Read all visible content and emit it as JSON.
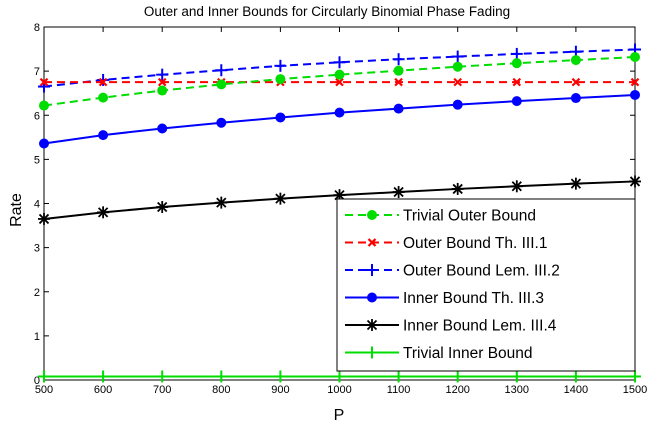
{
  "chart_data": {
    "type": "line",
    "title": "Outer and Inner Bounds for Circularly Binomial Phase Fading",
    "xlabel": "P",
    "ylabel": "Rate",
    "xlim": [
      500,
      1500
    ],
    "ylim": [
      0,
      8
    ],
    "x": [
      500,
      600,
      700,
      800,
      900,
      1000,
      1100,
      1200,
      1300,
      1400,
      1500
    ],
    "xticks": [
      "500",
      "600",
      "700",
      "800",
      "900",
      "1000",
      "1100",
      "1200",
      "1300",
      "1400",
      "1500"
    ],
    "yticks": [
      "0",
      "1",
      "2",
      "3",
      "4",
      "5",
      "6",
      "7",
      "8"
    ],
    "grid": false,
    "legend_position": "bottom-right",
    "series": [
      {
        "name": "Trivial Outer Bound",
        "color": "#00dd00",
        "dash": "dashed",
        "marker": "circle",
        "values": [
          6.22,
          6.4,
          6.56,
          6.7,
          6.82,
          6.92,
          7.01,
          7.1,
          7.18,
          7.25,
          7.32
        ]
      },
      {
        "name": "Outer Bound Th. III.1",
        "color": "#ff0000",
        "dash": "dashed",
        "marker": "x",
        "values": [
          6.75,
          6.75,
          6.75,
          6.75,
          6.75,
          6.75,
          6.75,
          6.75,
          6.75,
          6.75,
          6.75
        ]
      },
      {
        "name": "Outer Bound Lem. III.2",
        "color": "#0000ff",
        "dash": "dashed",
        "marker": "plus",
        "values": [
          6.65,
          6.8,
          6.92,
          7.02,
          7.12,
          7.2,
          7.27,
          7.33,
          7.39,
          7.44,
          7.49
        ]
      },
      {
        "name": "Inner Bound Th. III.3",
        "color": "#0000ff",
        "dash": "solid",
        "marker": "circle",
        "values": [
          5.36,
          5.55,
          5.7,
          5.83,
          5.95,
          6.06,
          6.15,
          6.24,
          6.32,
          6.39,
          6.46
        ]
      },
      {
        "name": "Inner Bound Lem. III.4",
        "color": "#000000",
        "dash": "solid",
        "marker": "star",
        "values": [
          3.65,
          3.8,
          3.92,
          4.02,
          4.11,
          4.19,
          4.26,
          4.33,
          4.39,
          4.45,
          4.5
        ]
      },
      {
        "name": "Trivial Inner Bound",
        "color": "#00dd00",
        "dash": "solid",
        "marker": "plus",
        "values": [
          0.08,
          0.08,
          0.08,
          0.08,
          0.08,
          0.08,
          0.08,
          0.08,
          0.08,
          0.08,
          0.08
        ]
      }
    ]
  }
}
